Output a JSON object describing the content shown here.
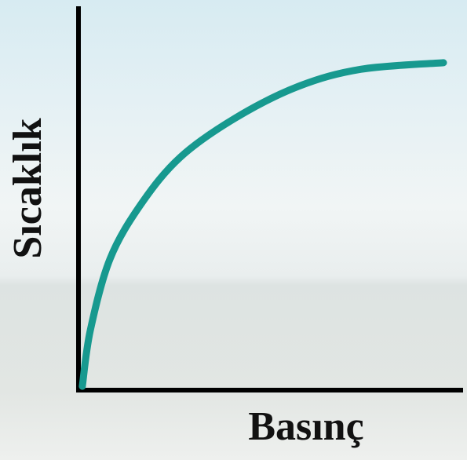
{
  "chart_data": {
    "type": "line",
    "x_label": "Basınç",
    "y_label": "Sıcaklık",
    "x": [
      1.0,
      3.1,
      8.2,
      16.3,
      26.5,
      40.8,
      57.1,
      73.5,
      94.9
    ],
    "series": [
      {
        "color": "#17998f",
        "values": [
          1.0,
          15.7,
          34.2,
          48.5,
          60.7,
          70.9,
          79.1,
          83.6,
          85.3
        ]
      }
    ],
    "xlim": [
      0,
      100
    ],
    "ylim": [
      0,
      100
    ]
  }
}
